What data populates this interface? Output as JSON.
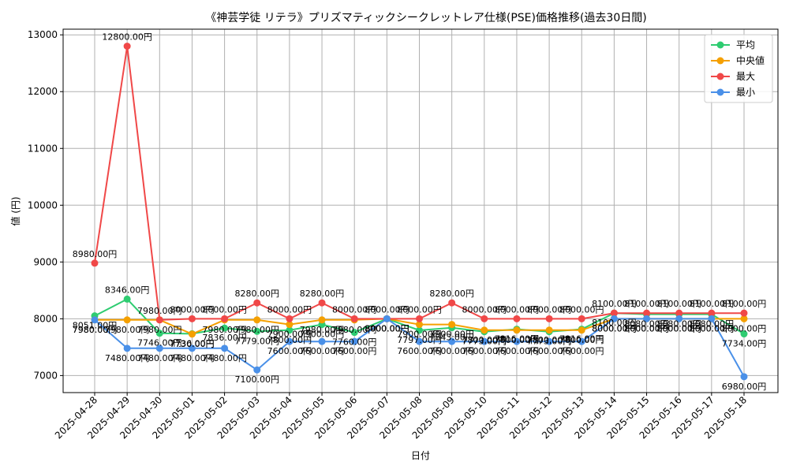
{
  "chart_data": {
    "type": "line",
    "title": "《神芸学徒 リテラ》プリズマティックシークレットレア仕様(PSE)価格推移(過去30日間)",
    "xlabel": "日付",
    "ylabel": "値 (円)",
    "ylim": [
      6700,
      13100
    ],
    "yticks": [
      7000,
      8000,
      9000,
      10000,
      11000,
      12000,
      13000
    ],
    "grid": true,
    "legend_position": "top-right",
    "label_suffix": "円",
    "x": [
      "2025-04-28",
      "2025-04-29",
      "2025-04-30",
      "2025-05-01",
      "2025-05-02",
      "2025-05-03",
      "2025-05-04",
      "2025-05-05",
      "2025-05-06",
      "2025-05-07",
      "2025-05-08",
      "2025-05-09",
      "2025-05-10",
      "2025-05-11",
      "2025-05-12",
      "2025-05-13",
      "2025-05-14",
      "2025-05-15",
      "2025-05-16",
      "2025-05-17",
      "2025-05-18"
    ],
    "series": [
      {
        "name": "平均",
        "color": "#2ecc71",
        "values": [
          8051,
          8346,
          7746,
          7736,
          7836,
          7779,
          7800,
          7900,
          7760,
          8000,
          7797,
          7843,
          7773,
          7816,
          7773,
          7816,
          8100,
          8080,
          8080,
          8080,
          7734
        ]
      },
      {
        "name": "中央値",
        "color": "#f5a000",
        "values": [
          7980,
          7980,
          7980,
          7730,
          7980,
          7980,
          7900,
          7980,
          7980,
          8000,
          7900,
          7900,
          7800,
          7800,
          7800,
          7800,
          8000,
          8000,
          8000,
          8000,
          8000
        ]
      },
      {
        "name": "最大",
        "color": "#f04848",
        "values": [
          8980,
          12800,
          7980,
          8000,
          8000,
          8280,
          8000,
          8280,
          8000,
          8000,
          8000,
          8280,
          8000,
          8000,
          8000,
          8000,
          8100,
          8100,
          8100,
          8100,
          8100
        ]
      },
      {
        "name": "最小",
        "color": "#4a90e8",
        "values": [
          7980,
          7480,
          7480,
          7480,
          7480,
          7100,
          7600,
          7600,
          7600,
          8000,
          7600,
          7600,
          7600,
          7600,
          7600,
          7600,
          8000,
          8000,
          8000,
          8000,
          6980
        ]
      }
    ]
  }
}
